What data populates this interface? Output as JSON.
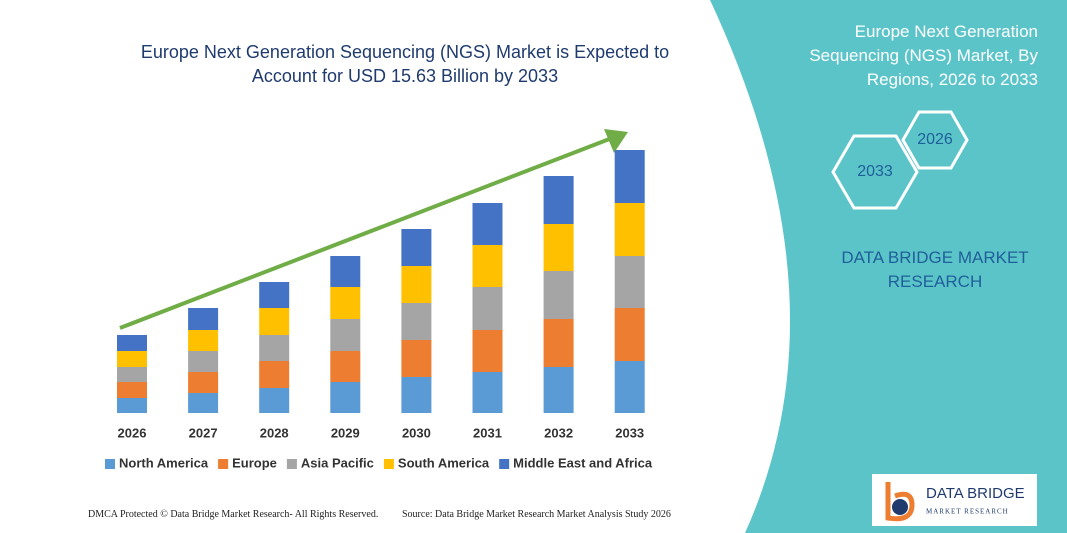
{
  "chart_data": {
    "type": "stacked_bar",
    "title": "Europe Next Generation Sequencing (NGS) Market is Expected to Account for USD 15.63 Billion by 2033",
    "categories": [
      "2026",
      "2027",
      "2028",
      "2029",
      "2030",
      "2031",
      "2032",
      "2033"
    ],
    "series": [
      {
        "name": "North America",
        "color": "#5b9bd5",
        "values": [
          15,
          20,
          25,
          31,
          36,
          41,
          46,
          52
        ]
      },
      {
        "name": "Europe",
        "color": "#ed7d31",
        "values": [
          16,
          21,
          27,
          31,
          37,
          42,
          48,
          53
        ]
      },
      {
        "name": "Asia Pacific",
        "color": "#a5a5a5",
        "values": [
          15,
          21,
          26,
          32,
          37,
          43,
          48,
          52
        ]
      },
      {
        "name": "South America",
        "color": "#ffc000",
        "values": [
          16,
          21,
          27,
          32,
          37,
          42,
          47,
          53
        ]
      },
      {
        "name": "Middle East and Africa",
        "color": "#4472c4",
        "values": [
          16,
          22,
          26,
          31,
          37,
          42,
          48,
          53
        ]
      }
    ],
    "legend": "bottom"
  },
  "panel": {
    "title": "Europe Next Generation Sequencing (NGS) Market, By Regions, 2026 to 2033",
    "hex_start": "2026",
    "hex_end": "2033",
    "brand": "DATA BRIDGE MARKET RESEARCH"
  },
  "logo": {
    "name": "DATA BRIDGE",
    "tagline": "MARKET RESEARCH"
  },
  "footer": {
    "left": "DMCA Protected © Data Bridge Market Research- All Rights Reserved.",
    "right": "Source: Data Bridge Market Research Market Analysis Study 2026"
  }
}
